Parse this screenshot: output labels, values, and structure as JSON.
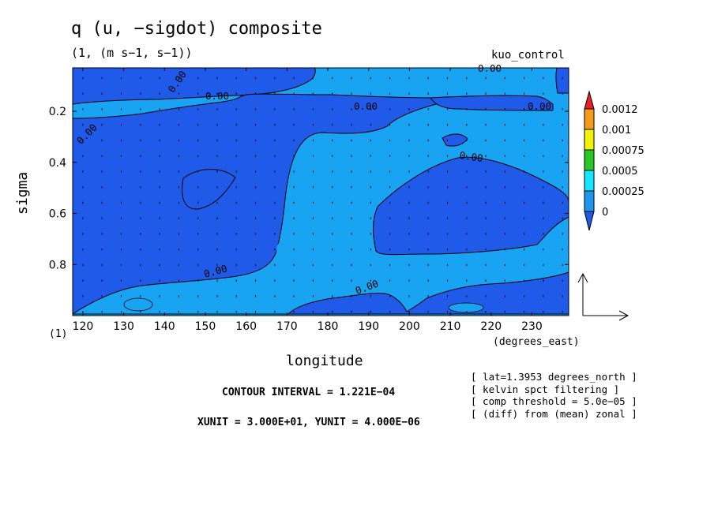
{
  "chart_data": {
    "type": "heatmap",
    "title": "q (u, −sigdot) composite",
    "subtitle": "(1, (m s−1, s−1))",
    "dataset": "kuo_control",
    "xlabel": "longitude",
    "x_units": "(degrees_east)",
    "ylabel": "sigma",
    "level_label": "(1)",
    "xlim": [
      117.5,
      239
    ],
    "ylim": [
      0.03,
      1.0
    ],
    "y_inverted": true,
    "x_ticks": [
      "120",
      "130",
      "140",
      "150",
      "160",
      "170",
      "180",
      "190",
      "200",
      "210",
      "220",
      "230"
    ],
    "y_ticks": [
      "0.2",
      "0.4",
      "0.6",
      "0.8"
    ],
    "x_tick_values": [
      120,
      130,
      140,
      150,
      160,
      170,
      180,
      190,
      200,
      210,
      220,
      230
    ],
    "y_tick_values": [
      0.2,
      0.4,
      0.6,
      0.8
    ],
    "contour_labels": [
      "0.00",
      "0.00",
      "0.00",
      "0.00",
      "0.00",
      "0.00",
      "0.00",
      "0.00",
      "0.00"
    ],
    "colorbar": {
      "labels": [
        "0.0012",
        "0.001",
        "0.00075",
        "0.0005",
        "0.00025",
        "0"
      ],
      "colors": [
        "#e8202a",
        "#f59a1c",
        "#f2f20a",
        "#28c828",
        "#14e6ff",
        "#1e96f0",
        "#1e5ae6"
      ]
    },
    "field_colors": {
      "negative": "#1f5ae8",
      "near_zero": "#18a4f2",
      "vector": "#000000"
    },
    "vector_field_shown": true,
    "contour_interval": "CONTOUR INTERVAL = 1.221E−04",
    "vector_units": "XUNIT = 3.000E+01, YUNIT = 4.000E−06",
    "notes": [
      "[ lat=1.3953 degrees_north ]",
      "[ kelvin spct filtering ]",
      "[ comp threshold = 5.0e−05 ]",
      "[ (diff) from (mean) zonal ]"
    ]
  }
}
